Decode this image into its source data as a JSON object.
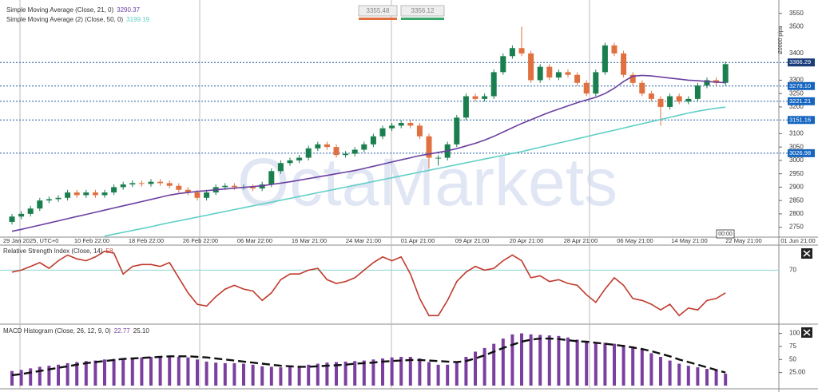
{
  "toolbar": {
    "sell": 3355.48,
    "buy": 3356.12
  },
  "watermark": "OctaMarkets",
  "scale_label": "20000 pips",
  "crosshair_time": "00:00",
  "chart_data": [
    {
      "type": "candlestick",
      "x_labels": [
        "29 Jan 2025, UTC+0",
        "10 Feb 22:00",
        "18 Feb 22:00",
        "26 Feb 22:00",
        "06 Mar 22:00",
        "16 Mar 21:00",
        "24 Mar 21:00",
        "01 Apr 21:00",
        "09 Apr 21:00",
        "20 Apr 21:00",
        "28 Apr 21:00",
        "06 May 21:00",
        "14 May 21:00",
        "22 May 21:00",
        "01 Jun 21:00"
      ],
      "up_color": "#1a7f4e",
      "down_color": "#e0703f",
      "open": [
        2770,
        2790,
        2800,
        2820,
        2850,
        2855,
        2860,
        2880,
        2870,
        2880,
        2870,
        2880,
        2900,
        2910,
        2915,
        2912,
        2920,
        2915,
        2905,
        2890,
        2880,
        2860,
        2880,
        2900,
        2905,
        2900,
        2900,
        2895,
        2910,
        2960,
        2990,
        3000,
        3010,
        3045,
        3060,
        3050,
        3020,
        3025,
        3040,
        3060,
        3090,
        3120,
        3130,
        3140,
        3130,
        3090,
        3010,
        3010,
        3060,
        3160,
        3240,
        3230,
        3240,
        3330,
        3390,
        3420,
        3400,
        3300,
        3350,
        3310,
        3330,
        3320,
        3290,
        3250,
        3330,
        3430,
        3400,
        3320,
        3290,
        3250,
        3230,
        3200,
        3240,
        3220,
        3230,
        3280,
        3300,
        3290
      ],
      "high": [
        2800,
        2810,
        2830,
        2860,
        2865,
        2870,
        2890,
        2890,
        2890,
        2890,
        2890,
        2910,
        2920,
        2925,
        2925,
        2930,
        2930,
        2925,
        2915,
        2900,
        2890,
        2890,
        2910,
        2915,
        2915,
        2910,
        2910,
        2920,
        2970,
        3000,
        3010,
        3020,
        3055,
        3070,
        3070,
        3060,
        3035,
        3050,
        3070,
        3100,
        3130,
        3140,
        3150,
        3150,
        3140,
        3100,
        3020,
        3070,
        3170,
        3250,
        3250,
        3250,
        3340,
        3400,
        3430,
        3500,
        3410,
        3360,
        3360,
        3340,
        3340,
        3330,
        3300,
        3340,
        3440,
        3440,
        3410,
        3330,
        3300,
        3260,
        3240,
        3250,
        3250,
        3240,
        3290,
        3310,
        3310,
        3370
      ],
      "low": [
        2760,
        2780,
        2790,
        2810,
        2840,
        2845,
        2850,
        2860,
        2860,
        2860,
        2860,
        2870,
        2890,
        2900,
        2902,
        2902,
        2905,
        2895,
        2880,
        2870,
        2850,
        2850,
        2870,
        2890,
        2890,
        2890,
        2885,
        2885,
        2900,
        2950,
        2980,
        2990,
        3000,
        3035,
        3040,
        3010,
        3010,
        3015,
        3030,
        3050,
        3080,
        3110,
        3120,
        3120,
        3080,
        2970,
        2980,
        3000,
        3050,
        3150,
        3220,
        3220,
        3230,
        3320,
        3380,
        3390,
        3290,
        3290,
        3300,
        3300,
        3310,
        3280,
        3240,
        3240,
        3320,
        3390,
        3310,
        3280,
        3240,
        3220,
        3130,
        3190,
        3210,
        3210,
        3220,
        3270,
        3280,
        3280
      ],
      "close": [
        2790,
        2800,
        2820,
        2850,
        2855,
        2860,
        2880,
        2870,
        2880,
        2870,
        2880,
        2900,
        2910,
        2915,
        2912,
        2920,
        2915,
        2905,
        2890,
        2880,
        2860,
        2880,
        2900,
        2905,
        2900,
        2900,
        2895,
        2910,
        2960,
        2990,
        3000,
        3010,
        3045,
        3060,
        3050,
        3020,
        3025,
        3040,
        3060,
        3090,
        3120,
        3130,
        3140,
        3130,
        3090,
        3010,
        3010,
        3060,
        3160,
        3240,
        3230,
        3240,
        3330,
        3390,
        3420,
        3400,
        3300,
        3350,
        3310,
        3330,
        3320,
        3290,
        3250,
        3330,
        3430,
        3400,
        3320,
        3290,
        3250,
        3230,
        3200,
        3240,
        3220,
        3230,
        3280,
        3300,
        3290,
        3360
      ],
      "series": [
        {
          "name": "Simple Moving Average (Close, 21, 0)",
          "color": "#6b3fa0",
          "values": [
            2735,
            2742,
            2750,
            2758,
            2766,
            2774,
            2782,
            2790,
            2798,
            2806,
            2814,
            2822,
            2830,
            2838,
            2846,
            2854,
            2862,
            2870,
            2876,
            2880,
            2884,
            2887,
            2890,
            2893,
            2896,
            2899,
            2902,
            2905,
            2910,
            2915,
            2920,
            2926,
            2932,
            2938,
            2944,
            2950,
            2956,
            2962,
            2970,
            2978,
            2986,
            2994,
            3002,
            3010,
            3018,
            3024,
            3030,
            3036,
            3044,
            3054,
            3064,
            3076,
            3090,
            3106,
            3122,
            3138,
            3152,
            3166,
            3180,
            3192,
            3204,
            3216,
            3226,
            3236,
            3250,
            3270,
            3295,
            3315,
            3318,
            3316,
            3312,
            3308,
            3304,
            3300,
            3298,
            3295,
            3293,
            3290.37
          ]
        },
        {
          "name": "Simple Moving Average (2) (Close, 50, 0)",
          "color": "#5fcfc6",
          "values": [
            null,
            null,
            null,
            null,
            null,
            null,
            null,
            null,
            null,
            null,
            2717,
            2724,
            2731,
            2738,
            2745,
            2752,
            2760,
            2767,
            2774,
            2781,
            2788,
            2795,
            2802,
            2809,
            2816,
            2823,
            2830,
            2837,
            2844,
            2851,
            2858,
            2865,
            2872,
            2879,
            2886,
            2893,
            2900,
            2907,
            2914,
            2921,
            2928,
            2935,
            2942,
            2949,
            2956,
            2963,
            2970,
            2977,
            2984,
            2991,
            2998,
            3005,
            3012,
            3019,
            3026,
            3033,
            3041,
            3049,
            3057,
            3065,
            3073,
            3081,
            3089,
            3097,
            3105,
            3113,
            3121,
            3129,
            3137,
            3145,
            3153,
            3161,
            3169,
            3177,
            3184,
            3190,
            3195,
            3199.19
          ]
        }
      ],
      "ylim": [
        2728,
        3576
      ],
      "yticks": [
        2750,
        2800,
        2850,
        2900,
        2950,
        3000,
        3050,
        3100,
        3200,
        3250,
        3300,
        3400,
        3500,
        3550
      ],
      "price_lines": [
        3366.29,
        {
          "value": 3278.1,
          "label": "3278.10"
        },
        3221.21,
        3151.16,
        3026.98
      ]
    },
    {
      "type": "line",
      "title": "Relative Strength Index (Close, 14)",
      "color": "#c0392b",
      "values": [
        69,
        70,
        72,
        74,
        71,
        75,
        78,
        76,
        75,
        77,
        80,
        79,
        68,
        72,
        73,
        73,
        72,
        74,
        66,
        58,
        52,
        51,
        56,
        60,
        62,
        60,
        59,
        54,
        58,
        65,
        68,
        68,
        70,
        71,
        65,
        63,
        64,
        66,
        70,
        74,
        77,
        75,
        77,
        68,
        55,
        46,
        46,
        54,
        64,
        69,
        72,
        70,
        71,
        75,
        78,
        75,
        66,
        67,
        64,
        65,
        63,
        62,
        57,
        53,
        60,
        66,
        62,
        55,
        54,
        52,
        49,
        52,
        46,
        50,
        49,
        54,
        55,
        58
      ],
      "ylim": [
        44,
        82
      ],
      "yticks": [
        70
      ]
    },
    {
      "type": "bar",
      "title": "MACD Histogram (Close, 26, 12, 9, 0)",
      "color": "#7b3fa0",
      "values": [
        28,
        30,
        33,
        36,
        38,
        40,
        43,
        45,
        47,
        48,
        50,
        51,
        52,
        53,
        54,
        55,
        56,
        56,
        55,
        54,
        50,
        46,
        44,
        43,
        43,
        42,
        40,
        37,
        36,
        35,
        36,
        38,
        40,
        42,
        44,
        45,
        46,
        47,
        48,
        50,
        52,
        54,
        55,
        55,
        52,
        45,
        40,
        40,
        45,
        55,
        65,
        72,
        80,
        90,
        98,
        100,
        98,
        97,
        96,
        95,
        92,
        88,
        85,
        83,
        82,
        80,
        78,
        75,
        70,
        62,
        55,
        48,
        42,
        38,
        35,
        32,
        30,
        22.77
      ],
      "signal": {
        "color": "#111111",
        "legend_value": "25.10",
        "values": [
          20,
          22,
          25,
          28,
          31,
          34,
          37,
          40,
          43,
          45,
          47,
          49,
          51,
          52,
          53,
          54,
          55,
          56,
          56,
          56,
          55,
          54,
          52,
          50,
          48,
          46,
          44,
          42,
          40,
          38,
          37,
          36,
          36,
          37,
          38,
          39,
          40,
          42,
          43,
          44,
          46,
          47,
          48,
          49,
          49,
          48,
          47,
          46,
          45,
          47,
          52,
          58,
          65,
          72,
          78,
          84,
          88,
          90,
          90,
          89,
          87,
          85,
          84,
          82,
          80,
          78,
          76,
          73,
          70,
          66,
          61,
          56,
          50,
          45,
          40,
          35,
          30,
          25.1
        ]
      },
      "ylim": [
        0,
        110
      ],
      "yticks": [
        {
          "value": 25,
          "label": "25.00"
        },
        50,
        75,
        100
      ]
    }
  ]
}
